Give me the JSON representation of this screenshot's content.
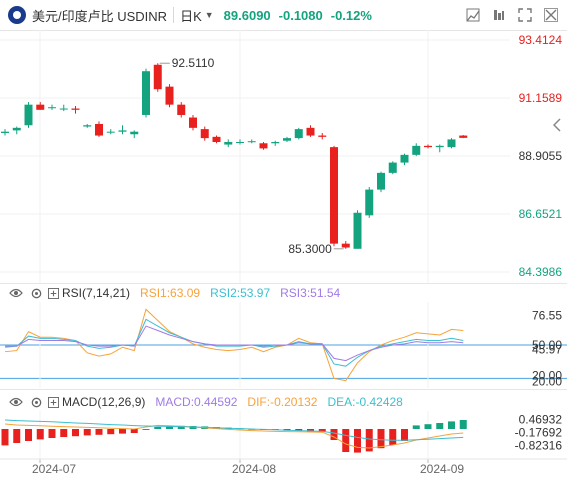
{
  "header": {
    "title": "美元/印度卢比 USDINR",
    "period": "日K",
    "price": "89.6090",
    "change": "-0.1080",
    "change_pct": "-0.12%"
  },
  "colors": {
    "up": "#14a37f",
    "down": "#e8201e",
    "rsi1": "#f7a23b",
    "rsi2": "#3bbfd1",
    "rsi3": "#a07be5",
    "dif": "#f7a23b",
    "dea": "#3bbfd1",
    "ref_line": "#4aa3e3",
    "price_axis_up": "#e8201e",
    "price_axis_down": "#14a37f"
  },
  "rsi_panel": {
    "name": "RSI(7,14,21)",
    "rsi1": "RSI1:63.09",
    "rsi2": "RSI2:53.97",
    "rsi3": "RSI3:51.54"
  },
  "macd_panel": {
    "name": "MACD(12,26,9)",
    "macd": "MACD:0.44592",
    "dif": "DIF:-0.20132",
    "dea": "DEA:-0.42428"
  },
  "chart_data": [
    {
      "type": "candlestick",
      "title": "美元/印度卢比 USDINR 日K",
      "x_ticks": [
        "2024-07",
        "2024-08",
        "2024-09"
      ],
      "y_ticks": [
        "93.4124",
        "91.1589",
        "88.9055",
        "86.6521",
        "84.3986"
      ],
      "ylim": [
        84.3986,
        93.4124
      ],
      "annotations": {
        "high": "92.5110",
        "low": "85.3000"
      },
      "candles": [
        {
          "o": 89.8,
          "h": 89.95,
          "l": 89.7,
          "c": 89.85
        },
        {
          "o": 89.9,
          "h": 90.05,
          "l": 89.75,
          "c": 90.0
        },
        {
          "o": 90.1,
          "h": 91.0,
          "l": 90.0,
          "c": 90.9
        },
        {
          "o": 90.9,
          "h": 91.0,
          "l": 90.7,
          "c": 90.7
        },
        {
          "o": 90.8,
          "h": 90.9,
          "l": 90.7,
          "c": 90.8
        },
        {
          "o": 90.75,
          "h": 90.9,
          "l": 90.65,
          "c": 90.75
        },
        {
          "o": 90.75,
          "h": 90.85,
          "l": 90.55,
          "c": 90.7
        },
        {
          "o": 90.05,
          "h": 90.15,
          "l": 90.0,
          "c": 90.1
        },
        {
          "o": 90.15,
          "h": 90.25,
          "l": 89.65,
          "c": 89.7
        },
        {
          "o": 89.85,
          "h": 89.95,
          "l": 89.75,
          "c": 89.85
        },
        {
          "o": 89.85,
          "h": 90.1,
          "l": 89.75,
          "c": 89.9
        },
        {
          "o": 89.75,
          "h": 89.9,
          "l": 89.6,
          "c": 89.85
        },
        {
          "o": 90.5,
          "h": 92.3,
          "l": 90.4,
          "c": 92.2
        },
        {
          "o": 92.45,
          "h": 92.51,
          "l": 91.4,
          "c": 91.5
        },
        {
          "o": 91.6,
          "h": 91.7,
          "l": 90.8,
          "c": 90.9
        },
        {
          "o": 90.9,
          "h": 91.0,
          "l": 90.4,
          "c": 90.5
        },
        {
          "o": 90.4,
          "h": 90.5,
          "l": 89.9,
          "c": 90.0
        },
        {
          "o": 89.95,
          "h": 90.05,
          "l": 89.5,
          "c": 89.6
        },
        {
          "o": 89.65,
          "h": 89.7,
          "l": 89.4,
          "c": 89.45
        },
        {
          "o": 89.35,
          "h": 89.55,
          "l": 89.25,
          "c": 89.45
        },
        {
          "o": 89.45,
          "h": 89.55,
          "l": 89.35,
          "c": 89.45
        },
        {
          "o": 89.45,
          "h": 89.55,
          "l": 89.4,
          "c": 89.48
        },
        {
          "o": 89.4,
          "h": 89.45,
          "l": 89.15,
          "c": 89.2
        },
        {
          "o": 89.4,
          "h": 89.5,
          "l": 89.3,
          "c": 89.45
        },
        {
          "o": 89.5,
          "h": 89.65,
          "l": 89.45,
          "c": 89.6
        },
        {
          "o": 89.6,
          "h": 90.0,
          "l": 89.55,
          "c": 89.95
        },
        {
          "o": 90.0,
          "h": 90.1,
          "l": 89.65,
          "c": 89.7
        },
        {
          "o": 89.7,
          "h": 89.8,
          "l": 89.55,
          "c": 89.65
        },
        {
          "o": 89.25,
          "h": 89.3,
          "l": 85.4,
          "c": 85.5
        },
        {
          "o": 85.5,
          "h": 85.6,
          "l": 85.3,
          "c": 85.35
        },
        {
          "o": 85.3,
          "h": 86.8,
          "l": 85.3,
          "c": 86.7
        },
        {
          "o": 86.6,
          "h": 87.7,
          "l": 86.5,
          "c": 87.6
        },
        {
          "o": 87.6,
          "h": 88.3,
          "l": 87.5,
          "c": 88.25
        },
        {
          "o": 88.25,
          "h": 88.7,
          "l": 88.2,
          "c": 88.65
        },
        {
          "o": 88.65,
          "h": 89.0,
          "l": 88.55,
          "c": 88.95
        },
        {
          "o": 88.95,
          "h": 89.4,
          "l": 88.9,
          "c": 89.3
        },
        {
          "o": 89.3,
          "h": 89.35,
          "l": 89.2,
          "c": 89.25
        },
        {
          "o": 89.25,
          "h": 89.35,
          "l": 89.05,
          "c": 89.3
        },
        {
          "o": 89.25,
          "h": 89.6,
          "l": 89.2,
          "c": 89.55
        },
        {
          "o": 89.7,
          "h": 89.72,
          "l": 89.6,
          "c": 89.61
        }
      ]
    },
    {
      "type": "line",
      "title": "RSI(7,14,21)",
      "y_ticks": [
        "76.55",
        "50.00",
        "45.97",
        "20.00",
        "20.00"
      ],
      "ylim": [
        15,
        85
      ],
      "ref_lines": [
        50,
        20
      ],
      "series": [
        {
          "name": "RSI1",
          "values": [
            44,
            45,
            62,
            57,
            57,
            56,
            54,
            43,
            40,
            42,
            48,
            45,
            82,
            72,
            62,
            57,
            51,
            48,
            46,
            45,
            46,
            48,
            44,
            48,
            50,
            56,
            52,
            51,
            20,
            18,
            34,
            44,
            50,
            54,
            57,
            61,
            60,
            59,
            64,
            63
          ]
        },
        {
          "name": "RSI2",
          "values": [
            48,
            49,
            58,
            56,
            56,
            55,
            54,
            49,
            47,
            48,
            50,
            49,
            73,
            67,
            61,
            57,
            53,
            51,
            49,
            49,
            49,
            50,
            48,
            49,
            50,
            53,
            51,
            51,
            33,
            31,
            39,
            45,
            49,
            51,
            53,
            55,
            54,
            54,
            56,
            54
          ]
        },
        {
          "name": "RSI3",
          "values": [
            49,
            49,
            55,
            54,
            54,
            54,
            53,
            50,
            49,
            49,
            50,
            49,
            67,
            63,
            59,
            56,
            53,
            51,
            50,
            50,
            50,
            50,
            49,
            50,
            50,
            52,
            51,
            51,
            38,
            36,
            41,
            45,
            48,
            50,
            51,
            53,
            52,
            52,
            53,
            52
          ]
        }
      ]
    },
    {
      "type": "bar",
      "title": "MACD(12,26,9)",
      "y_ticks": [
        "0.46932",
        "-0.17692",
        "-0.82316"
      ],
      "ylim": [
        -1.3,
        0.9
      ],
      "series": [
        {
          "name": "MACD",
          "values": [
            -0.82,
            -0.7,
            -0.6,
            -0.52,
            -0.45,
            -0.4,
            -0.36,
            -0.32,
            -0.29,
            -0.26,
            -0.23,
            -0.2,
            0.0,
            0.1,
            0.14,
            0.16,
            0.15,
            0.13,
            0.1,
            0.07,
            0.04,
            0.01,
            -0.02,
            -0.05,
            -0.08,
            -0.1,
            -0.12,
            -0.15,
            -0.55,
            -1.15,
            -1.18,
            -1.12,
            -0.96,
            -0.8,
            -0.6,
            0.18,
            0.24,
            0.3,
            0.38,
            0.45
          ]
        },
        {
          "name": "DIF",
          "values": [
            0.25,
            0.2,
            0.18,
            0.16,
            0.14,
            0.12,
            0.1,
            0.08,
            0.06,
            0.04,
            0.02,
            0.0,
            0.1,
            0.18,
            0.16,
            0.14,
            0.1,
            0.06,
            0.02,
            -0.02,
            -0.05,
            -0.08,
            -0.1,
            -0.12,
            -0.13,
            -0.14,
            -0.15,
            -0.16,
            -0.4,
            -0.75,
            -0.92,
            -0.95,
            -0.88,
            -0.8,
            -0.7,
            -0.55,
            -0.45,
            -0.35,
            -0.25,
            -0.2
          ]
        },
        {
          "name": "DEA",
          "values": [
            0.45,
            0.42,
            0.4,
            0.38,
            0.36,
            0.33,
            0.3,
            0.28,
            0.25,
            0.22,
            0.2,
            0.17,
            0.15,
            0.14,
            0.13,
            0.12,
            0.1,
            0.08,
            0.06,
            0.04,
            0.02,
            0.0,
            -0.02,
            -0.04,
            -0.06,
            -0.08,
            -0.1,
            -0.12,
            -0.2,
            -0.32,
            -0.42,
            -0.5,
            -0.54,
            -0.56,
            -0.56,
            -0.54,
            -0.51,
            -0.48,
            -0.45,
            -0.42
          ]
        }
      ]
    }
  ]
}
